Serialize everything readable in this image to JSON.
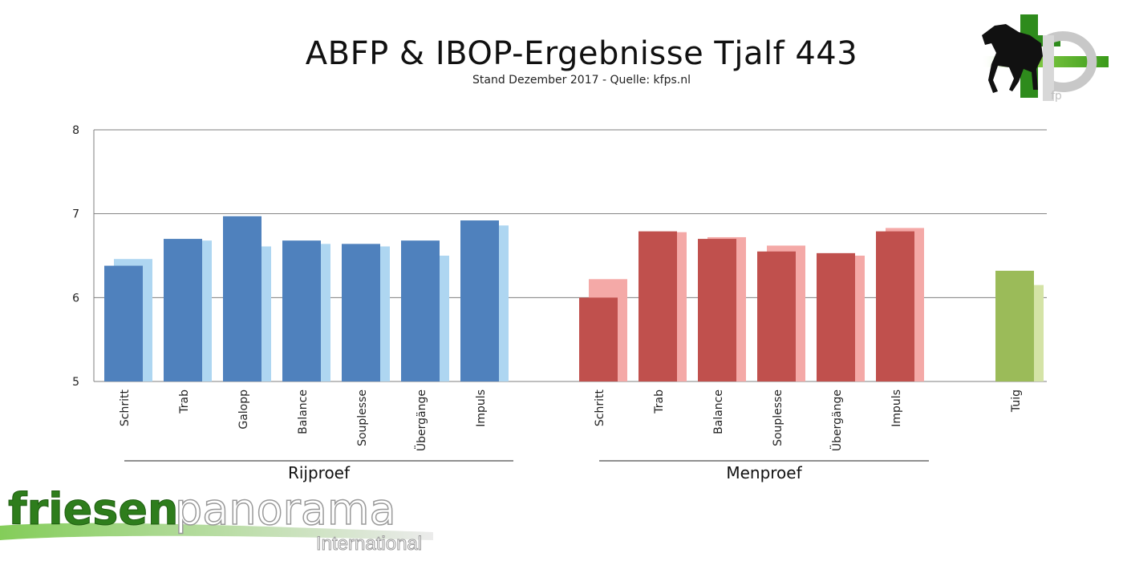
{
  "title": "ABFP & IBOP-Ergebnisse Tjalf 443",
  "subtitle": "Stand Dezember 2017 - Quelle: kfps.nl",
  "logos": {
    "top_right": {
      "icon": "kfps-horse-logo",
      "text": "fp"
    },
    "bottom_left": {
      "icon": "friesenpanorama-logo",
      "word1": "friesen",
      "word2": "panorama",
      "word3": "International"
    }
  },
  "chart_data": {
    "type": "bar",
    "ylim": [
      5,
      8
    ],
    "yticks": [
      5,
      6,
      7,
      8
    ],
    "grid": true,
    "groups": [
      {
        "name": "Rijproef",
        "color": "#4f81bd",
        "color_light": "#aed6f1",
        "categories": [
          "Schritt",
          "Trab",
          "Galopp",
          "Balance",
          "Souplesse",
          "Übergänge",
          "Impuls"
        ],
        "values": [
          6.38,
          6.7,
          6.97,
          6.68,
          6.64,
          6.68,
          6.92
        ],
        "values_light": [
          6.46,
          6.68,
          6.61,
          6.64,
          6.61,
          6.5,
          6.86
        ]
      },
      {
        "name": "Menproef",
        "color": "#c0504d",
        "color_light": "#f4a9a7",
        "categories": [
          "Schritt",
          "Trab",
          "Balance",
          "Souplesse",
          "Übergänge",
          "Impuls"
        ],
        "values": [
          6.0,
          6.79,
          6.7,
          6.55,
          6.53,
          6.79
        ],
        "values_light": [
          6.22,
          6.78,
          6.72,
          6.62,
          6.5,
          6.83
        ]
      },
      {
        "name": "",
        "color": "#9bbb59",
        "color_light": "#d4e3a6",
        "categories": [
          "Tuig"
        ],
        "values": [
          6.32
        ],
        "values_light": [
          6.15
        ]
      }
    ]
  }
}
